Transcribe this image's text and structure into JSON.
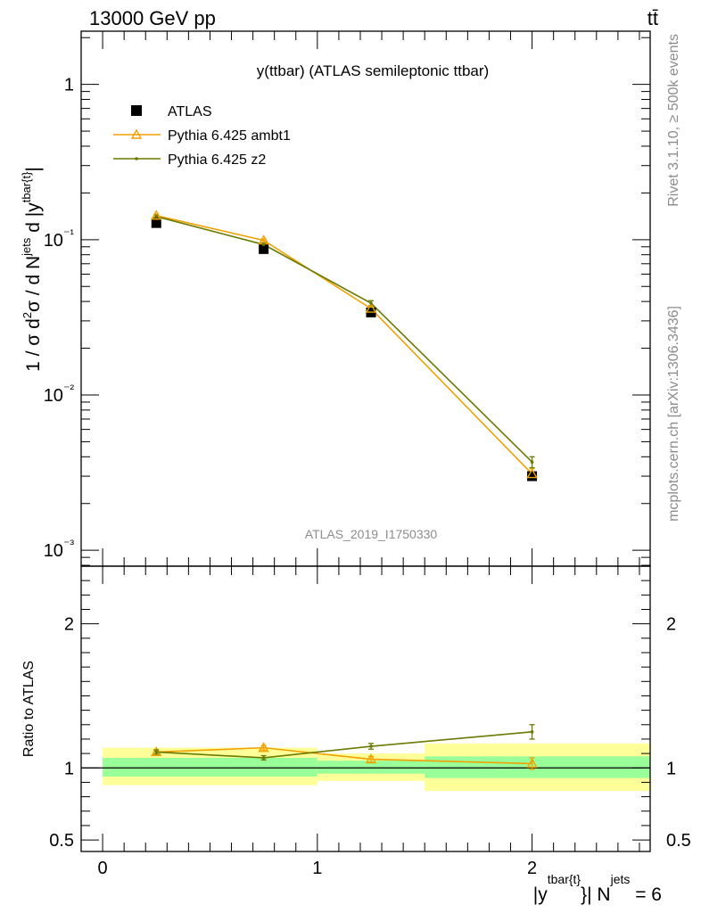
{
  "header": {
    "left": "13000 GeV pp",
    "right": "tt̄"
  },
  "side_labels": {
    "top": "Rivet 3.1.10, ≥ 500k events",
    "bottom": "mcplots.cern.ch [arXiv:1306.3436]"
  },
  "chart_data": [
    {
      "type": "scatter",
      "panel": "main",
      "title": "y(ttbar) (ATLAS semileptonic ttbar)",
      "ylabel": "1 / σ d²σ / d N^jets d |y^tbar{t}|",
      "yscale": "log",
      "ylim": [
        0.00079,
        2.2
      ],
      "xlim": [
        -0.1,
        2.55
      ],
      "y_ticks": [
        {
          "value": 1,
          "label": "1"
        },
        {
          "value": 0.1,
          "label": "10⁻¹"
        },
        {
          "value": 0.01,
          "label": "10⁻²"
        },
        {
          "value": 0.001,
          "label": "10⁻³"
        }
      ],
      "watermark": "ATLAS_2019_I1750330",
      "legend_position": "top-left",
      "x": [
        0.25,
        0.75,
        1.25,
        2.0
      ],
      "series": [
        {
          "name": "ATLAS",
          "marker": "square",
          "color": "#000000",
          "values": [
            0.128,
            0.087,
            0.034,
            0.003
          ]
        },
        {
          "name": "Pythia 6.425 ambt1",
          "marker": "triangle-open",
          "color": "#f0a000",
          "values": [
            0.143,
            0.099,
            0.036,
            0.0031
          ],
          "errors": [
            0.003,
            0.002,
            0.0015,
            0.00025
          ]
        },
        {
          "name": "Pythia 6.425 z2",
          "marker": "dot",
          "color": "#6b7a00",
          "values": [
            0.141,
            0.093,
            0.039,
            0.0037
          ],
          "errors": [
            0.003,
            0.002,
            0.0015,
            0.0003
          ]
        }
      ]
    },
    {
      "type": "scatter",
      "panel": "ratio",
      "ylabel": "Ratio to ATLAS",
      "xlabel": "|y^tbar{t}| N^jets = 6",
      "ylim": [
        0.42,
        2.4
      ],
      "x_ticks": [
        {
          "value": 0,
          "label": "0"
        },
        {
          "value": 1,
          "label": "1"
        },
        {
          "value": 2,
          "label": "2"
        }
      ],
      "y_ticks": [
        {
          "value": 0.5,
          "label": "0.5"
        },
        {
          "value": 1,
          "label": "1"
        },
        {
          "value": 2,
          "label": "2"
        }
      ],
      "bands": [
        {
          "x0": 0,
          "x1": 1,
          "stat": [
            0.94,
            1.07
          ],
          "total": [
            0.88,
            1.14
          ]
        },
        {
          "x0": 1,
          "x1": 1.5,
          "stat": [
            0.96,
            1.05
          ],
          "total": [
            0.91,
            1.1
          ]
        },
        {
          "x0": 1.5,
          "x1": 2.55,
          "stat": [
            0.93,
            1.08
          ],
          "total": [
            0.84,
            1.17
          ]
        }
      ],
      "x": [
        0.25,
        0.75,
        1.25,
        2.0
      ],
      "series": [
        {
          "name": "Pythia 6.425 ambt1",
          "color": "#f0a000",
          "marker": "triangle-open",
          "values": [
            1.11,
            1.14,
            1.06,
            1.03
          ],
          "errors": [
            0.015,
            0.015,
            0.02,
            0.04
          ]
        },
        {
          "name": "Pythia 6.425 z2",
          "color": "#6b7a00",
          "marker": "dot",
          "values": [
            1.11,
            1.07,
            1.15,
            1.25
          ],
          "errors": [
            0.015,
            0.015,
            0.02,
            0.05
          ]
        }
      ]
    }
  ]
}
